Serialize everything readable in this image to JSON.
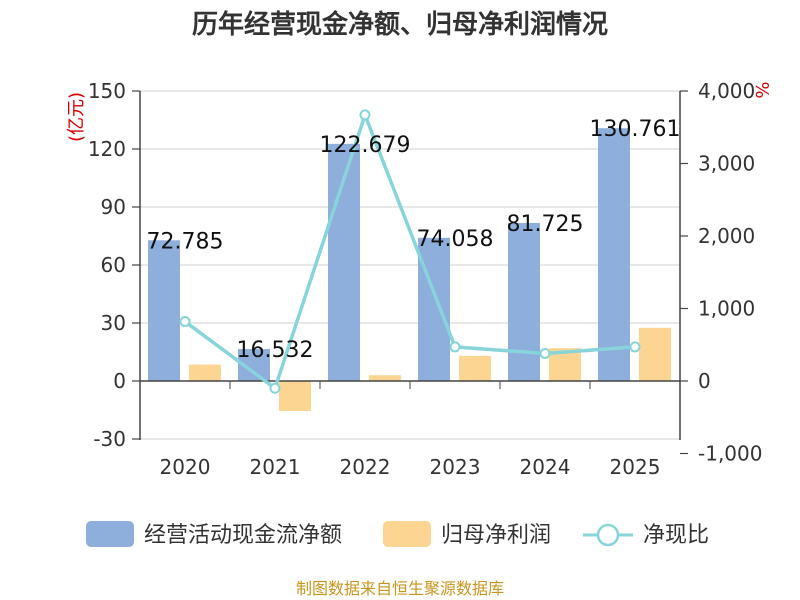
{
  "chart_data": {
    "type": "bar+line",
    "title": "历年经营现金净额、归母净利润情况",
    "categories": [
      "2020",
      "2021",
      "2022",
      "2023",
      "2024",
      "2025"
    ],
    "series": [
      {
        "name": "经营活动现金流净额",
        "type": "bar",
        "axis": "left",
        "color": "#8eaedc",
        "values": [
          72.785,
          16.532,
          122.679,
          74.058,
          81.725,
          130.761
        ]
      },
      {
        "name": "归母净利润",
        "type": "bar",
        "axis": "left",
        "color": "#fdd593",
        "values": [
          8.5,
          -15.5,
          3.0,
          13.0,
          17.0,
          27.5
        ]
      },
      {
        "name": "净现比",
        "type": "line",
        "axis": "right",
        "color": "#87d4da",
        "values": [
          820,
          -100,
          3670,
          470,
          380,
          470
        ]
      }
    ],
    "data_labels": [
      "72.785",
      "16.532",
      "122.679",
      "74.058",
      "81.725",
      "130.761"
    ],
    "y_left": {
      "label": "(亿元)",
      "min": -30,
      "max": 150,
      "ticks": [
        "150",
        "120",
        "90",
        "60",
        "30",
        "0",
        "-30"
      ]
    },
    "y_right": {
      "label": "%",
      "min": -1000,
      "max": 4000,
      "ticks": [
        "4,000",
        "3,000",
        "2,000",
        "1,000",
        "0",
        "-1,000"
      ]
    },
    "grid": true,
    "legend_position": "bottom"
  },
  "source": "制图数据来自恒生聚源数据库"
}
